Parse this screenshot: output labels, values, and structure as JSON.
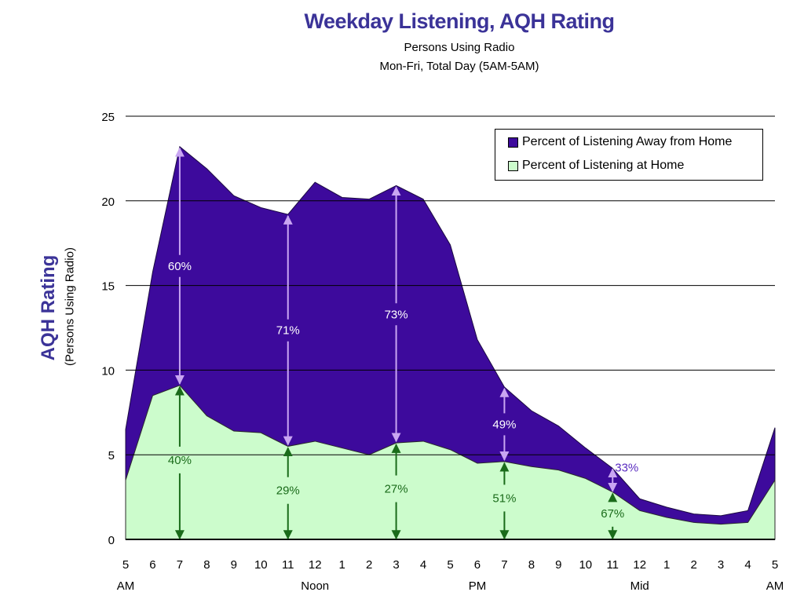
{
  "chart_data": {
    "type": "area",
    "title": "Weekday Listening, AQH Rating",
    "subtitle1": "Persons Using Radio",
    "subtitle2": "Mon-Fri, Total Day (5AM-5AM)",
    "ylabel": "AQH Rating",
    "ylabel_sub": "(Persons Using Radio)",
    "ylim": [
      0,
      25
    ],
    "yticks": [
      0,
      5,
      10,
      15,
      20,
      25
    ],
    "grid": true,
    "legend_position": "top-right",
    "categories": [
      "5",
      "6",
      "7",
      "8",
      "9",
      "10",
      "11",
      "12",
      "1",
      "2",
      "3",
      "4",
      "5",
      "6",
      "7",
      "8",
      "9",
      "10",
      "11",
      "12",
      "1",
      "2",
      "3",
      "4",
      "5"
    ],
    "period_labels": [
      {
        "index": 0,
        "text": "AM"
      },
      {
        "index": 7,
        "text": "Noon"
      },
      {
        "index": 13,
        "text": "PM"
      },
      {
        "index": 19,
        "text": "Mid"
      },
      {
        "index": 24,
        "text": "AM"
      }
    ],
    "series": [
      {
        "name": "Percent of Listening Away from Home",
        "color": "#3d0a9c",
        "values": [
          6.5,
          15.8,
          23.2,
          21.9,
          20.3,
          19.6,
          19.2,
          21.1,
          20.2,
          20.1,
          20.9,
          20.1,
          17.4,
          11.8,
          9.0,
          7.6,
          6.7,
          5.4,
          4.2,
          2.4,
          1.9,
          1.5,
          1.4,
          1.7,
          6.6
        ]
      },
      {
        "name": "Percent of Listening at Home",
        "color": "#ccfccc",
        "values": [
          3.5,
          8.5,
          9.1,
          7.3,
          6.4,
          6.3,
          5.5,
          5.8,
          5.4,
          5.0,
          5.7,
          5.8,
          5.3,
          4.5,
          4.6,
          4.3,
          4.1,
          3.6,
          2.8,
          1.7,
          1.3,
          1.0,
          0.9,
          1.0,
          3.5
        ]
      }
    ],
    "annotations": [
      {
        "index": 2,
        "away_pct": "60%",
        "home_pct": "40%"
      },
      {
        "index": 6,
        "away_pct": "71%",
        "home_pct": "29%"
      },
      {
        "index": 10,
        "away_pct": "73%",
        "home_pct": "27%"
      },
      {
        "index": 14,
        "away_pct": "49%",
        "home_pct": "51%"
      },
      {
        "index": 18,
        "away_pct": "33%",
        "home_pct": "67%"
      }
    ]
  }
}
